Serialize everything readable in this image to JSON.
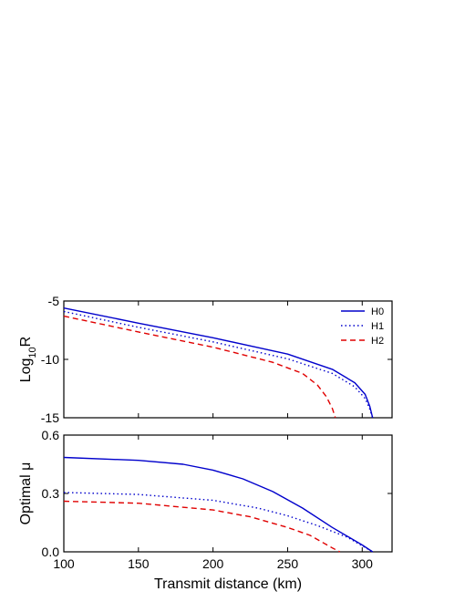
{
  "chart_data": [
    {
      "type": "line",
      "panel": "top",
      "ylabel": {
        "base": "Log",
        "sub": "10",
        "tail": "R"
      },
      "xlim": [
        100,
        320
      ],
      "ylim": [
        -15,
        -5
      ],
      "yticks": [
        "-5",
        "-10",
        "-15"
      ],
      "grid": false,
      "legend_position": "top-right",
      "series": [
        {
          "name": "H0",
          "color": "#0000cc",
          "dash": "solid",
          "x": [
            100,
            150,
            200,
            250,
            280,
            295,
            302,
            305,
            307
          ],
          "y": [
            -5.6,
            -6.9,
            -8.15,
            -9.55,
            -10.85,
            -12.0,
            -13.0,
            -14.0,
            -15.0
          ]
        },
        {
          "name": "H1",
          "color": "#0000cc",
          "dash": "dotted",
          "x": [
            100,
            150,
            200,
            250,
            280,
            295,
            302,
            305,
            307
          ],
          "y": [
            -5.9,
            -7.25,
            -8.5,
            -9.95,
            -11.2,
            -12.35,
            -13.35,
            -14.25,
            -15.0
          ]
        },
        {
          "name": "H2",
          "color": "#e00000",
          "dash": "dashed",
          "x": [
            100,
            150,
            200,
            240,
            260,
            270,
            276,
            280,
            282
          ],
          "y": [
            -6.3,
            -7.65,
            -8.95,
            -10.25,
            -11.2,
            -12.2,
            -13.2,
            -14.2,
            -15.0
          ]
        }
      ]
    },
    {
      "type": "line",
      "panel": "bottom",
      "ylabel": "Optimal μ",
      "xlabel": "Transmit distance (km)",
      "xlim": [
        100,
        320
      ],
      "ylim": [
        0,
        0.6
      ],
      "xticks": [
        "100",
        "150",
        "200",
        "250",
        "300"
      ],
      "yticks": [
        "0.0",
        "0.3",
        "0.6"
      ],
      "grid": false,
      "series": [
        {
          "name": "H0",
          "color": "#0000cc",
          "dash": "solid",
          "x": [
            100,
            150,
            180,
            200,
            220,
            240,
            260,
            280,
            300,
            307
          ],
          "y": [
            0.485,
            0.47,
            0.45,
            0.42,
            0.375,
            0.31,
            0.225,
            0.125,
            0.035,
            0.0
          ]
        },
        {
          "name": "H1",
          "color": "#0000cc",
          "dash": "dotted",
          "x": [
            100,
            150,
            200,
            230,
            250,
            270,
            290,
            307
          ],
          "y": [
            0.305,
            0.295,
            0.265,
            0.225,
            0.185,
            0.135,
            0.075,
            0.0
          ]
        },
        {
          "name": "H2",
          "color": "#e00000",
          "dash": "dashed",
          "x": [
            100,
            150,
            200,
            225,
            250,
            265,
            280,
            285
          ],
          "y": [
            0.26,
            0.25,
            0.215,
            0.18,
            0.125,
            0.085,
            0.02,
            0.0
          ]
        }
      ]
    }
  ]
}
